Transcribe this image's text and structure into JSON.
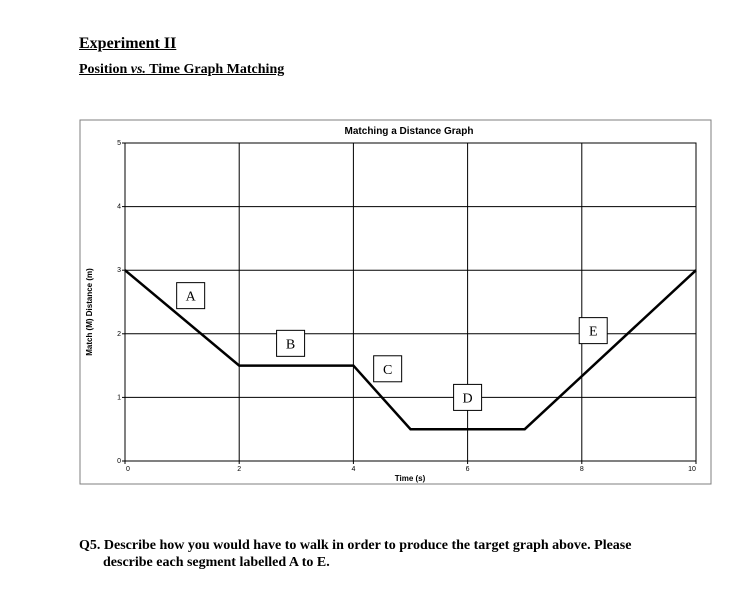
{
  "heading": {
    "title": "Experiment II",
    "subtitle_prefix": "Position ",
    "subtitle_vs": "vs.",
    "subtitle_suffix": " Time Graph Matching"
  },
  "question": {
    "line1": "Q5. Describe how you would have to walk in order to produce the target graph above. Please",
    "line2": "describe each segment labelled A to E."
  },
  "chart_data": {
    "type": "line",
    "title": "Matching a Distance Graph",
    "xlabel": "Time (s)",
    "ylabel": "Match (M) Distance (m)",
    "xlim": [
      0,
      10
    ],
    "ylim": [
      0,
      5
    ],
    "x_ticks": [
      0,
      2,
      4,
      6,
      8,
      10
    ],
    "y_ticks": [
      0,
      1,
      2,
      3,
      4,
      5
    ],
    "grid": true,
    "series": [
      {
        "x": [
          0,
          2,
          4,
          5,
          7,
          10
        ],
        "y": [
          3,
          1.5,
          1.5,
          0.5,
          0.5,
          3
        ]
      }
    ],
    "segment_labels": [
      {
        "text": "A",
        "x": 1.15,
        "y": 2.6
      },
      {
        "text": "B",
        "x": 2.9,
        "y": 1.85
      },
      {
        "text": "C",
        "x": 4.6,
        "y": 1.45
      },
      {
        "text": "D",
        "x": 6.0,
        "y": 1.0
      },
      {
        "text": "E",
        "x": 8.2,
        "y": 2.05
      }
    ]
  }
}
